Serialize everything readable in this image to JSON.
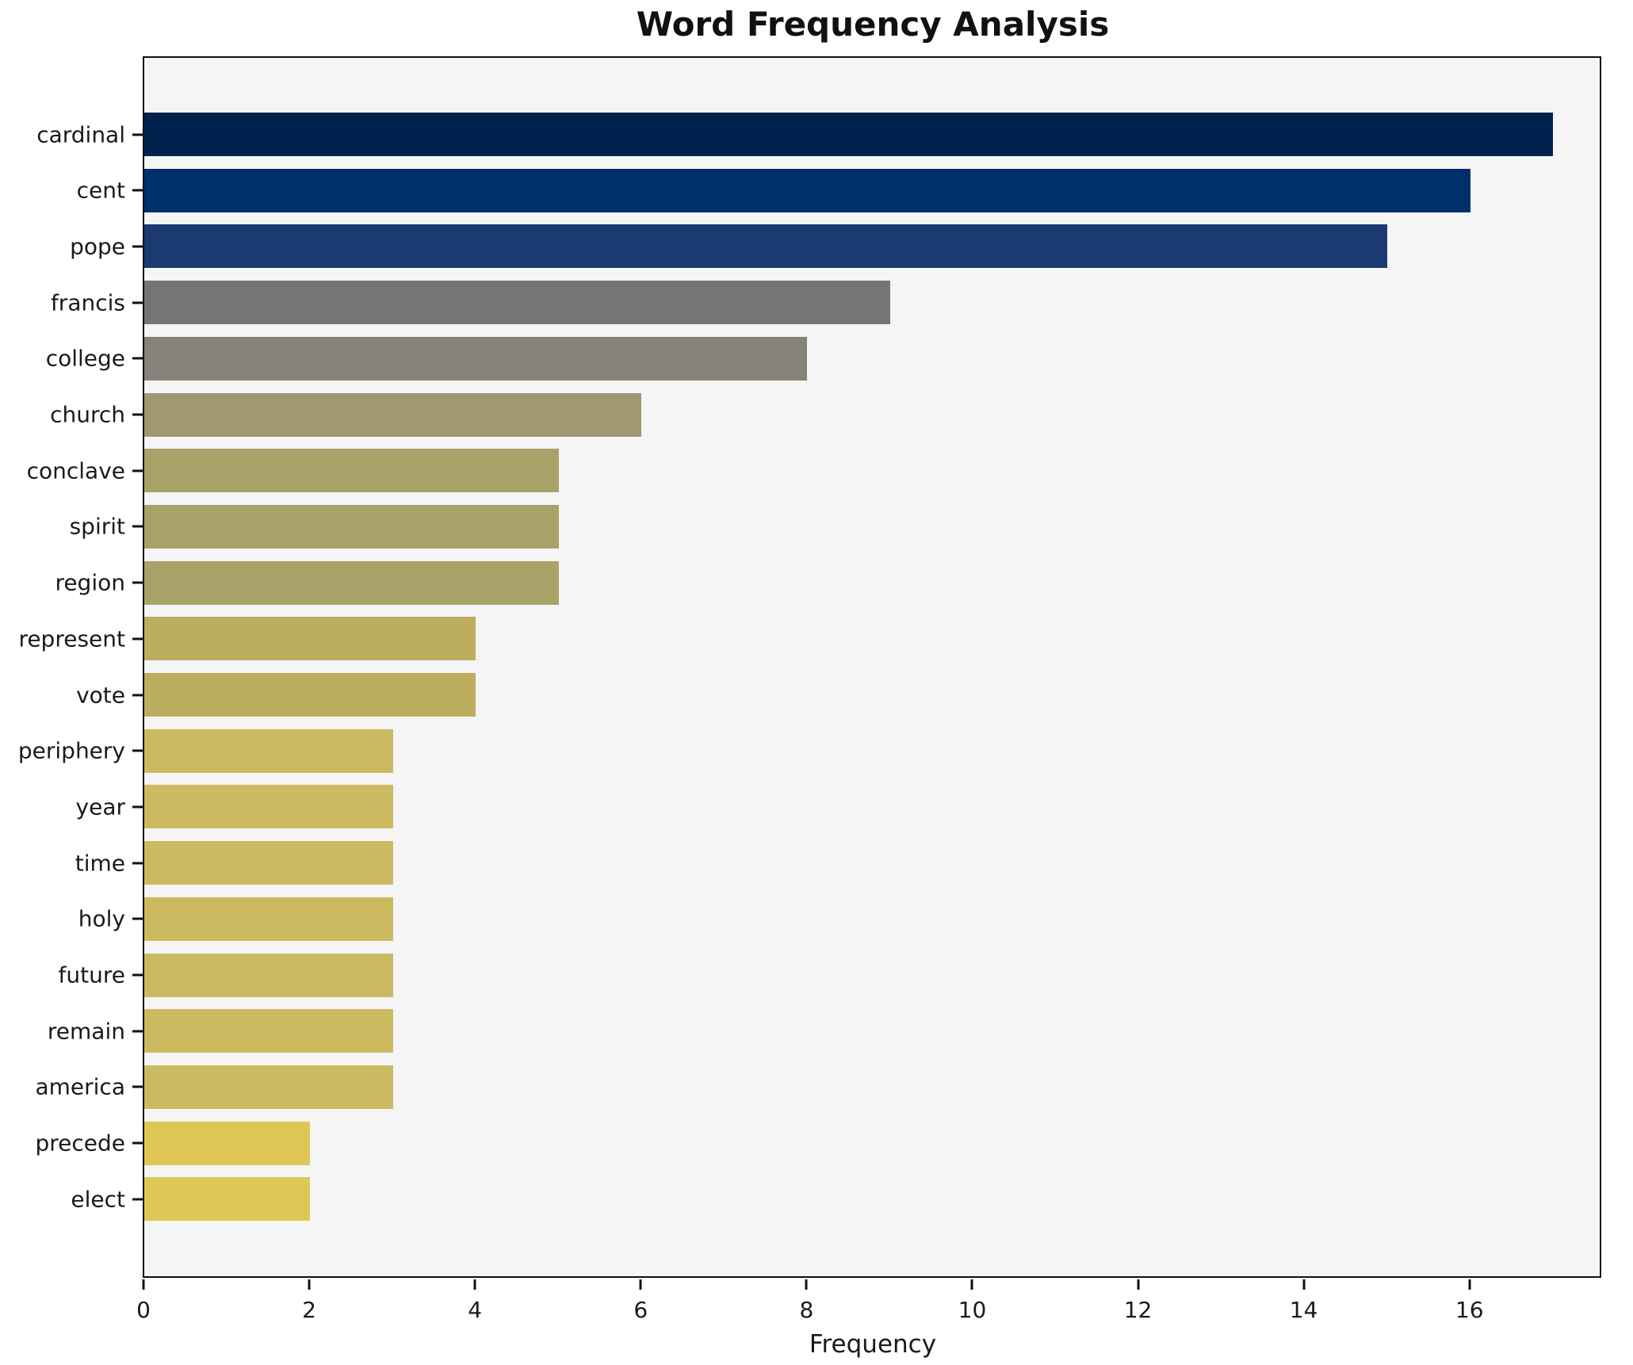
{
  "chart_data": {
    "type": "bar",
    "orientation": "horizontal",
    "title": "Word Frequency Analysis",
    "xlabel": "Frequency",
    "ylabel": "",
    "xlim": [
      0,
      17.6
    ],
    "x_ticks": [
      0,
      2,
      4,
      6,
      8,
      10,
      12,
      14,
      16
    ],
    "grid": false,
    "legend": false,
    "plot_background": "#f5f5f6",
    "figure_background": "#ffffff",
    "colormap": "cividis (dark navy = most frequent, yellow = least frequent)",
    "categories": [
      "cardinal",
      "cent",
      "pope",
      "francis",
      "college",
      "church",
      "conclave",
      "spirit",
      "region",
      "represent",
      "vote",
      "periphery",
      "year",
      "time",
      "holy",
      "future",
      "remain",
      "america",
      "precede",
      "elect"
    ],
    "values": [
      17,
      16,
      15,
      9,
      8,
      6,
      5,
      5,
      5,
      4,
      4,
      3,
      3,
      3,
      3,
      3,
      3,
      3,
      2,
      2
    ],
    "bar_colors": [
      "#00224e",
      "#00306b",
      "#1b3a71",
      "#757575",
      "#858379",
      "#a09873",
      "#aaa369",
      "#aaa369",
      "#aaa369",
      "#bdad5f",
      "#bdad5f",
      "#ccba60",
      "#ccba60",
      "#ccba60",
      "#ccba60",
      "#ccba60",
      "#ccba60",
      "#ccba60",
      "#dfc755",
      "#dfc755"
    ]
  }
}
